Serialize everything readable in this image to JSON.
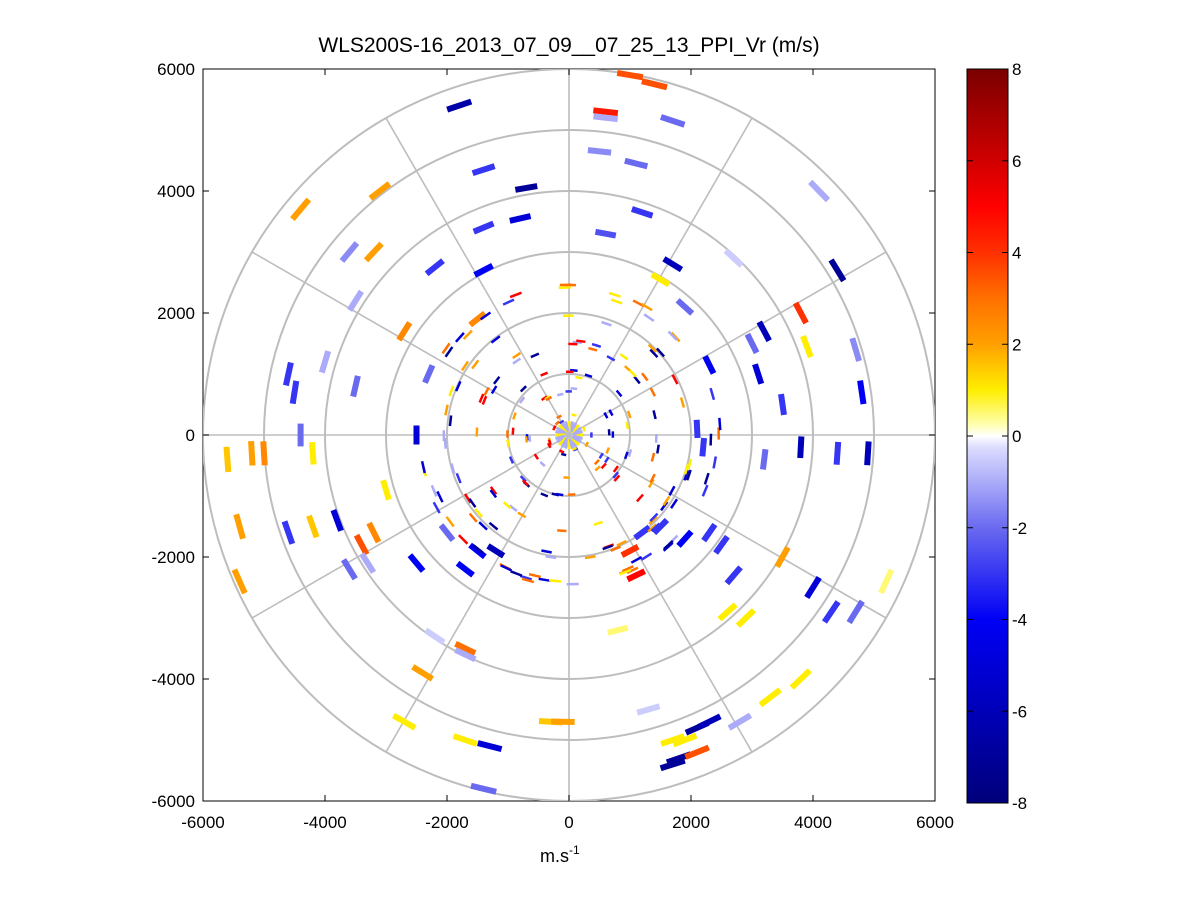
{
  "chart_data": {
    "type": "scatter",
    "subtype": "polar-ppi",
    "title": "WLS200S-16_2013_07_09__07_25_13_PPI_Vr (m/s)",
    "xlabel_base": "m.s",
    "xlabel_exp": "-1",
    "xlim": [
      -6000,
      6000
    ],
    "ylim": [
      -6000,
      6000
    ],
    "xticks": [
      -6000,
      -4000,
      -2000,
      0,
      2000,
      4000,
      6000
    ],
    "yticks": [
      -6000,
      -4000,
      -2000,
      0,
      2000,
      4000,
      6000
    ],
    "xtick_labels": [
      "-6000",
      "-4000",
      "-2000",
      "0",
      "2000",
      "4000",
      "6000"
    ],
    "ytick_labels": [
      "-6000",
      "-4000",
      "-2000",
      "0",
      "2000",
      "4000",
      "6000"
    ],
    "polar_rings": [
      1000,
      2000,
      3000,
      4000,
      5000,
      6000
    ],
    "spokes_deg": [
      0,
      30,
      60,
      90,
      120,
      150
    ],
    "colorbar": {
      "min": -8,
      "max": 8,
      "ticks": [
        8,
        6,
        4,
        2,
        0,
        -2,
        -4,
        -6,
        -8
      ],
      "tick_labels": [
        "8",
        "6",
        "4",
        "2",
        "0",
        "-2",
        "-4",
        "-6",
        "-8"
      ],
      "stops": [
        {
          "v": -8,
          "c": "#00007a"
        },
        {
          "v": -6,
          "c": "#0000b8"
        },
        {
          "v": -4,
          "c": "#0000f5"
        },
        {
          "v": -2,
          "c": "#6a6af0"
        },
        {
          "v": -0.25,
          "c": "#dcdcff"
        },
        {
          "v": 0,
          "c": "#ffffff"
        },
        {
          "v": 0.25,
          "c": "#ffffb0"
        },
        {
          "v": 1,
          "c": "#ffee00"
        },
        {
          "v": 2,
          "c": "#ffa000"
        },
        {
          "v": 3,
          "c": "#ff7000"
        },
        {
          "v": 4,
          "c": "#ff3000"
        },
        {
          "v": 5,
          "c": "#ff0000"
        },
        {
          "v": 6,
          "c": "#d00000"
        },
        {
          "v": 8,
          "c": "#7a0000"
        }
      ]
    },
    "points": [
      [
        -1800,
        5400,
        -6.5
      ],
      [
        1000,
        5900,
        3.5
      ],
      [
        1400,
        5750,
        3.5
      ],
      [
        600,
        5300,
        4.5
      ],
      [
        600,
        5200,
        -1
      ],
      [
        1700,
        5150,
        -2
      ],
      [
        -1400,
        4350,
        -3
      ],
      [
        -700,
        4050,
        -7
      ],
      [
        -3100,
        4000,
        2
      ],
      [
        -4400,
        3700,
        2
      ],
      [
        4100,
        4000,
        -1
      ],
      [
        500,
        4650,
        -1.5
      ],
      [
        1100,
        4450,
        -2
      ],
      [
        -800,
        3550,
        -5
      ],
      [
        1200,
        3650,
        -3
      ],
      [
        600,
        3300,
        -2.5
      ],
      [
        -1400,
        3400,
        -3
      ],
      [
        -3200,
        3000,
        2
      ],
      [
        -3600,
        3000,
        -1.5
      ],
      [
        -2200,
        2750,
        -3
      ],
      [
        -1400,
        2700,
        -4
      ],
      [
        1700,
        2800,
        -6
      ],
      [
        2700,
        2900,
        -0.5
      ],
      [
        4400,
        2700,
        -7
      ],
      [
        1500,
        2550,
        1
      ],
      [
        -3500,
        2200,
        -1
      ],
      [
        -2700,
        1700,
        2.5
      ],
      [
        -1500,
        1900,
        2.5
      ],
      [
        1900,
        2100,
        -2
      ],
      [
        3800,
        2000,
        4
      ],
      [
        3200,
        1700,
        -6
      ],
      [
        3900,
        1450,
        1
      ],
      [
        4700,
        1400,
        -1.5
      ],
      [
        -4000,
        1200,
        -1
      ],
      [
        -4600,
        1000,
        -3
      ],
      [
        -2300,
        1000,
        -2
      ],
      [
        3000,
        1500,
        -2
      ],
      [
        3100,
        1000,
        -5
      ],
      [
        4800,
        700,
        -4
      ],
      [
        -4500,
        700,
        -3
      ],
      [
        -3500,
        800,
        -2
      ],
      [
        2300,
        1150,
        -4
      ],
      [
        3500,
        500,
        -3
      ],
      [
        4900,
        -300,
        -6
      ],
      [
        4400,
        -300,
        -3
      ],
      [
        3800,
        -200,
        -6
      ],
      [
        3200,
        -400,
        -2
      ],
      [
        2200,
        -200,
        -3
      ],
      [
        2100,
        100,
        -3
      ],
      [
        -5600,
        -400,
        1.5
      ],
      [
        -5200,
        -300,
        2
      ],
      [
        -5000,
        -300,
        2.5
      ],
      [
        -4400,
        0,
        -2
      ],
      [
        -4200,
        -300,
        1
      ],
      [
        -2500,
        0,
        -5
      ],
      [
        -3000,
        -900,
        1
      ],
      [
        -5400,
        -1500,
        2
      ],
      [
        -4600,
        -1600,
        -3
      ],
      [
        -4200,
        -1500,
        1.5
      ],
      [
        -3800,
        -1400,
        -5
      ],
      [
        -3200,
        -1600,
        2.5
      ],
      [
        -3400,
        -1800,
        3.5
      ],
      [
        -2500,
        -2100,
        -4
      ],
      [
        -3600,
        -2200,
        -2
      ],
      [
        -3300,
        -2100,
        -1
      ],
      [
        -5400,
        -2400,
        2
      ],
      [
        -1500,
        -1900,
        -4
      ],
      [
        -1700,
        -2200,
        -4
      ],
      [
        -1200,
        -1900,
        -6
      ],
      [
        -2000,
        -1600,
        -2
      ],
      [
        5200,
        -2400,
        0.5
      ],
      [
        4700,
        -2900,
        -2
      ],
      [
        4300,
        -2900,
        -3
      ],
      [
        4000,
        -2500,
        -5
      ],
      [
        3500,
        -2000,
        2
      ],
      [
        2600,
        -2900,
        1
      ],
      [
        2900,
        -3000,
        1
      ],
      [
        2700,
        -2300,
        -3
      ],
      [
        2500,
        -1800,
        -3
      ],
      [
        2300,
        -1600,
        -3
      ],
      [
        1900,
        -1700,
        -4
      ],
      [
        1500,
        -1500,
        -3
      ],
      [
        1200,
        -1600,
        -3
      ],
      [
        1000,
        -1900,
        4
      ],
      [
        1100,
        -2300,
        5
      ],
      [
        3800,
        -4000,
        1
      ],
      [
        3300,
        -4300,
        1
      ],
      [
        2800,
        -4700,
        -1
      ],
      [
        2100,
        -4800,
        -7
      ],
      [
        2300,
        -4700,
        -6
      ],
      [
        1900,
        -5000,
        1
      ],
      [
        1700,
        -5000,
        1
      ],
      [
        1700,
        -5400,
        -7
      ],
      [
        1800,
        -5300,
        -7
      ],
      [
        2100,
        -5200,
        3.5
      ],
      [
        1300,
        -4500,
        -0.5
      ],
      [
        800,
        -3200,
        0.5
      ],
      [
        -1700,
        -3500,
        3
      ],
      [
        -1700,
        -3600,
        -1
      ],
      [
        -2200,
        -3300,
        -0.5
      ],
      [
        -2400,
        -3900,
        2
      ],
      [
        -2700,
        -4700,
        1
      ],
      [
        -1700,
        -5000,
        1
      ],
      [
        -1300,
        -5100,
        -5
      ],
      [
        -1400,
        -5800,
        -2
      ],
      [
        -300,
        -4700,
        1.5
      ],
      [
        -100,
        -4700,
        2
      ]
    ],
    "inner_echoes_ring_radii": [
      300,
      700,
      1000,
      1500,
      2000,
      2400
    ]
  }
}
